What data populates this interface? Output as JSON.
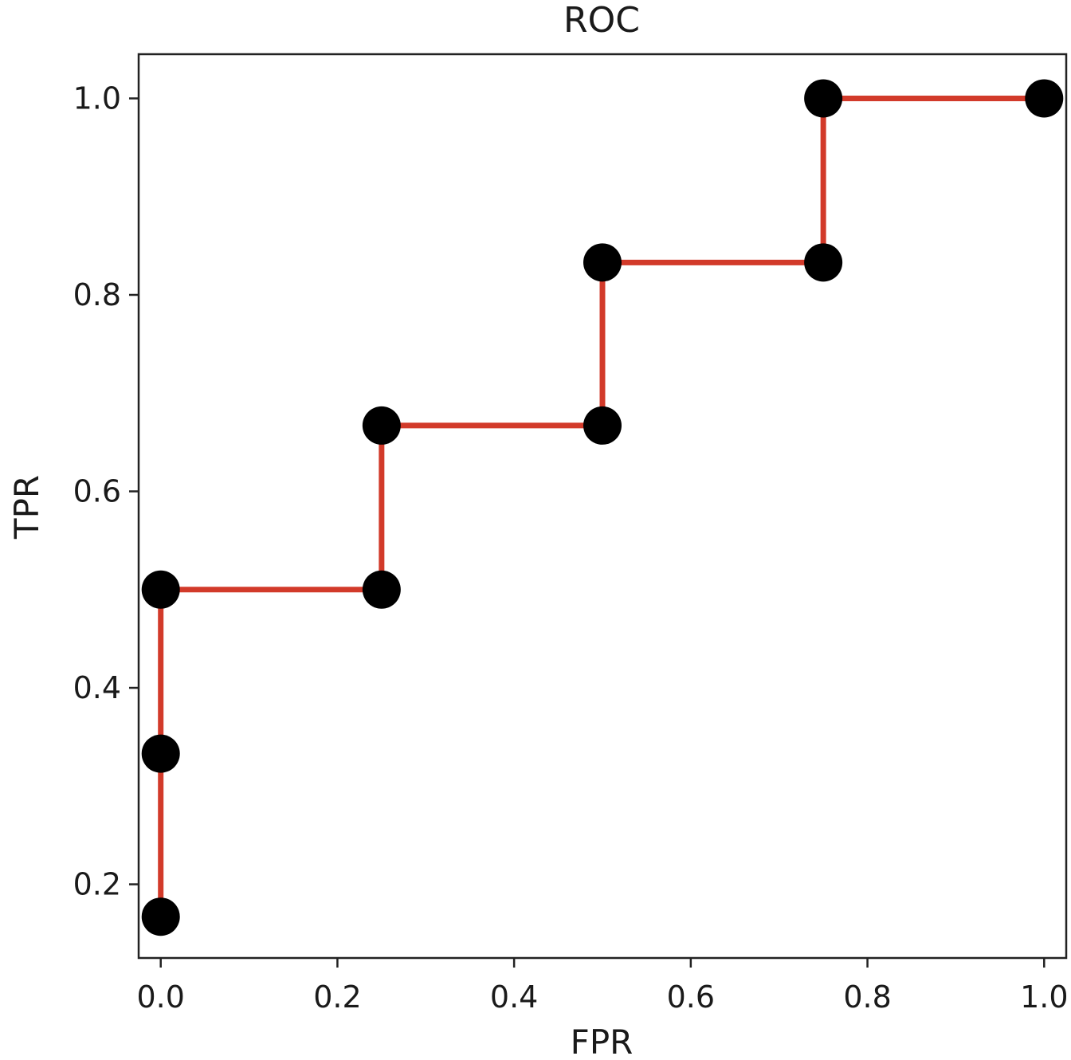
{
  "chart_data": {
    "type": "line",
    "title": "ROC",
    "xlabel": "FPR",
    "ylabel": "TPR",
    "xlim": [
      -0.025,
      1.025
    ],
    "ylim": [
      0.125,
      1.045
    ],
    "xticks": [
      "0.0",
      "0.2",
      "0.4",
      "0.6",
      "0.8",
      "1.0"
    ],
    "yticks": [
      "0.2",
      "0.4",
      "0.6",
      "0.8",
      "1.0"
    ],
    "grid": false,
    "series": [
      {
        "line_color": "#d23a2a",
        "marker_color": "#000000",
        "drawstyle": "steps-post",
        "x": [
          0.0,
          0.0,
          0.0,
          0.25,
          0.25,
          0.5,
          0.5,
          0.75,
          0.75,
          1.0
        ],
        "y": [
          0.167,
          0.333,
          0.5,
          0.5,
          0.667,
          0.667,
          0.833,
          0.833,
          1.0,
          1.0
        ]
      }
    ]
  }
}
